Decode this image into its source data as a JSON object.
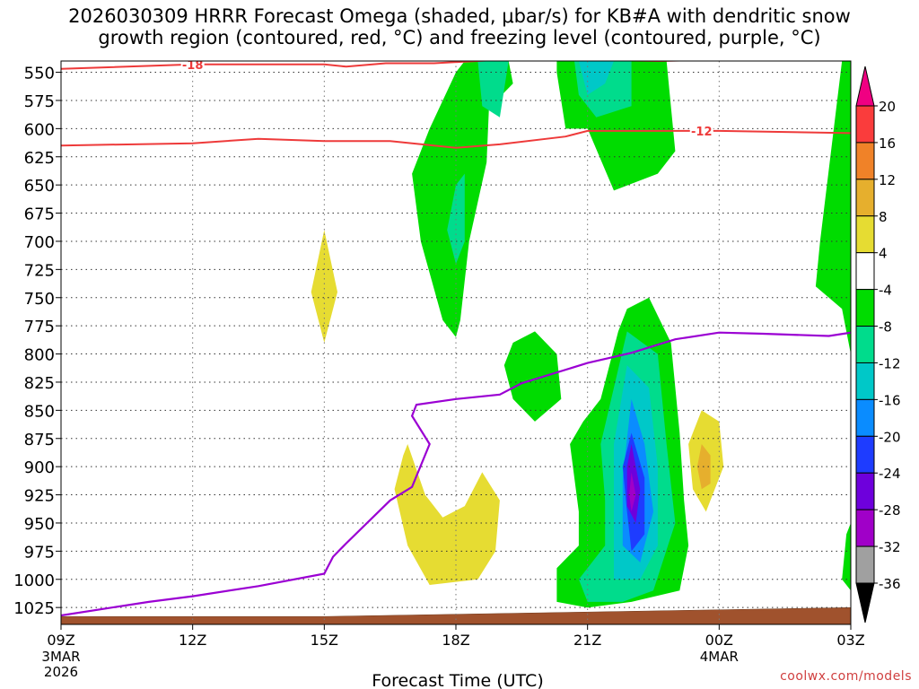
{
  "chart_data": {
    "type": "heatmap",
    "title_line1": "2026030309 HRRR Forecast Omega (shaded, μbar/s) for KB#A with dendritic snow",
    "title_line2": "growth region (contoured, red, °C) and freezing level (contoured, purple, °C)",
    "xlabel": "Forecast Time (UTC)",
    "x_ticks": [
      {
        "hour": 0,
        "label": "09Z",
        "sub1": "3MAR",
        "sub2": "2026"
      },
      {
        "hour": 3,
        "label": "12Z",
        "sub1": "",
        "sub2": ""
      },
      {
        "hour": 6,
        "label": "15Z",
        "sub1": "",
        "sub2": ""
      },
      {
        "hour": 9,
        "label": "18Z",
        "sub1": "",
        "sub2": ""
      },
      {
        "hour": 12,
        "label": "21Z",
        "sub1": "",
        "sub2": ""
      },
      {
        "hour": 15,
        "label": "00Z",
        "sub1": "4MAR",
        "sub2": ""
      },
      {
        "hour": 18,
        "label": "03Z",
        "sub1": "",
        "sub2": ""
      }
    ],
    "xlim_hours": [
      0,
      18
    ],
    "y_ticks": [
      550,
      575,
      600,
      625,
      650,
      675,
      700,
      725,
      750,
      775,
      800,
      825,
      850,
      875,
      900,
      925,
      950,
      975,
      1000,
      1025
    ],
    "ylim_hPa": [
      540,
      1040
    ],
    "colorbar": {
      "levels": [
        -36,
        -32,
        -28,
        -24,
        -20,
        -16,
        -12,
        -8,
        -4,
        4,
        8,
        12,
        16,
        20
      ],
      "labels": [
        "20",
        "16",
        "12",
        "8",
        "4",
        "-4",
        "-8",
        "-12",
        "-16",
        "-20",
        "-24",
        "-28",
        "-32",
        "-36"
      ],
      "colors": [
        "#000000",
        "#a0a0a0",
        "#a000c8",
        "#6e00dc",
        "#1e3cff",
        "#0a8cff",
        "#00c8c8",
        "#00dc8c",
        "#00dc00",
        "#ffffff",
        "#e6dc32",
        "#e6af2d",
        "#f08228",
        "#fa3c3c",
        "#f00082"
      ]
    },
    "shaded_regions": [
      {
        "name": "green",
        "color": "#00dc00",
        "points": [
          [
            9.2,
            540
          ],
          [
            9.8,
            540
          ],
          [
            9.7,
            630
          ],
          [
            9.3,
            700
          ],
          [
            9.1,
            770
          ],
          [
            9.0,
            785
          ],
          [
            8.7,
            770
          ],
          [
            8.2,
            700
          ],
          [
            8.0,
            640
          ],
          [
            8.4,
            600
          ],
          [
            9.0,
            550
          ]
        ]
      },
      {
        "name": "green",
        "color": "#00dc00",
        "points": [
          [
            9.9,
            540
          ],
          [
            10.2,
            540
          ],
          [
            10.3,
            560
          ],
          [
            9.8,
            580
          ]
        ]
      },
      {
        "name": "green",
        "color": "#00dc00",
        "points": [
          [
            11.3,
            540
          ],
          [
            13.8,
            540
          ],
          [
            14.0,
            620
          ],
          [
            13.6,
            640
          ],
          [
            12.6,
            655
          ],
          [
            12.0,
            600
          ],
          [
            11.5,
            600
          ],
          [
            11.3,
            550
          ]
        ]
      },
      {
        "name": "green",
        "color": "#00dc00",
        "points": [
          [
            10.3,
            790
          ],
          [
            10.8,
            780
          ],
          [
            11.3,
            800
          ],
          [
            11.4,
            840
          ],
          [
            10.8,
            860
          ],
          [
            10.3,
            840
          ],
          [
            10.1,
            810
          ]
        ]
      },
      {
        "name": "green",
        "color": "#00dc00",
        "points": [
          [
            12.9,
            760
          ],
          [
            13.4,
            750
          ],
          [
            13.9,
            790
          ],
          [
            14.1,
            870
          ],
          [
            14.2,
            930
          ],
          [
            14.3,
            970
          ],
          [
            14.1,
            1010
          ],
          [
            13.0,
            1020
          ],
          [
            12.0,
            1025
          ],
          [
            11.3,
            1020
          ],
          [
            11.3,
            990
          ],
          [
            11.8,
            970
          ],
          [
            11.8,
            940
          ],
          [
            11.6,
            880
          ],
          [
            11.9,
            860
          ],
          [
            12.3,
            840
          ],
          [
            12.5,
            810
          ],
          [
            12.7,
            780
          ]
        ]
      },
      {
        "name": "green",
        "color": "#00dc00",
        "points": [
          [
            17.8,
            540
          ],
          [
            18,
            540
          ],
          [
            18,
            800
          ],
          [
            17.8,
            760
          ],
          [
            17.2,
            740
          ],
          [
            17.3,
            700
          ]
        ]
      },
      {
        "name": "green",
        "color": "#00dc00",
        "points": [
          [
            17.9,
            960
          ],
          [
            18,
            950
          ],
          [
            18,
            1010
          ],
          [
            17.8,
            1000
          ]
        ]
      },
      {
        "name": "mint",
        "color": "#00dc8c",
        "points": [
          [
            9.0,
            650
          ],
          [
            9.2,
            640
          ],
          [
            9.2,
            700
          ],
          [
            9.0,
            720
          ],
          [
            8.8,
            690
          ]
        ]
      },
      {
        "name": "mint",
        "color": "#00dc8c",
        "points": [
          [
            9.5,
            540
          ],
          [
            10.2,
            540
          ],
          [
            10.0,
            590
          ],
          [
            9.6,
            580
          ]
        ]
      },
      {
        "name": "mint",
        "color": "#00dc8c",
        "points": [
          [
            11.7,
            540
          ],
          [
            13.0,
            540
          ],
          [
            13.0,
            580
          ],
          [
            12.2,
            590
          ],
          [
            11.8,
            570
          ]
        ]
      },
      {
        "name": "mint",
        "color": "#00dc8c",
        "points": [
          [
            12.9,
            780
          ],
          [
            13.6,
            800
          ],
          [
            13.8,
            880
          ],
          [
            14.0,
            950
          ],
          [
            13.5,
            1010
          ],
          [
            12.8,
            1020
          ],
          [
            12.0,
            1020
          ],
          [
            11.8,
            1000
          ],
          [
            12.4,
            970
          ],
          [
            12.4,
            930
          ],
          [
            12.3,
            880
          ],
          [
            12.6,
            830
          ]
        ]
      },
      {
        "name": "cyan",
        "color": "#00c8c8",
        "points": [
          [
            11.8,
            540
          ],
          [
            12.6,
            540
          ],
          [
            12.4,
            560
          ],
          [
            12.0,
            570
          ]
        ]
      },
      {
        "name": "cyan",
        "color": "#00c8c8",
        "points": [
          [
            12.9,
            810
          ],
          [
            13.4,
            830
          ],
          [
            13.6,
            900
          ],
          [
            13.6,
            970
          ],
          [
            13.2,
            1000
          ],
          [
            12.6,
            1000
          ],
          [
            12.6,
            950
          ],
          [
            12.6,
            880
          ]
        ]
      },
      {
        "name": "skyblue",
        "color": "#0a8cff",
        "points": [
          [
            13.0,
            840
          ],
          [
            13.3,
            880
          ],
          [
            13.5,
            940
          ],
          [
            13.2,
            985
          ],
          [
            12.8,
            970
          ],
          [
            12.8,
            910
          ]
        ]
      },
      {
        "name": "blue",
        "color": "#1e3cff",
        "points": [
          [
            13.0,
            870
          ],
          [
            13.3,
            910
          ],
          [
            13.3,
            960
          ],
          [
            13.0,
            975
          ],
          [
            12.9,
            940
          ],
          [
            12.8,
            900
          ]
        ]
      },
      {
        "name": "indigo",
        "color": "#6e00dc",
        "points": [
          [
            13.0,
            880
          ],
          [
            13.2,
            920
          ],
          [
            13.1,
            950
          ],
          [
            12.9,
            935
          ],
          [
            12.9,
            900
          ]
        ]
      },
      {
        "name": "purple",
        "color": "#a000c8",
        "points": [
          [
            13.0,
            905
          ],
          [
            13.1,
            925
          ],
          [
            13.0,
            940
          ],
          [
            12.95,
            925
          ]
        ]
      },
      {
        "name": "yellow",
        "color": "#e6dc32",
        "points": [
          [
            6.0,
            690
          ],
          [
            6.3,
            745
          ],
          [
            6.0,
            790
          ],
          [
            5.7,
            745
          ]
        ]
      },
      {
        "name": "yellow",
        "color": "#e6dc32",
        "points": [
          [
            7.9,
            880
          ],
          [
            8.3,
            925
          ],
          [
            8.7,
            945
          ],
          [
            9.2,
            935
          ],
          [
            9.6,
            905
          ],
          [
            10.0,
            930
          ],
          [
            9.9,
            975
          ],
          [
            9.5,
            1000
          ],
          [
            8.4,
            1005
          ],
          [
            7.9,
            970
          ],
          [
            7.6,
            920
          ],
          [
            7.8,
            890
          ]
        ]
      },
      {
        "name": "yellow",
        "color": "#e6dc32",
        "points": [
          [
            14.6,
            850
          ],
          [
            15.0,
            860
          ],
          [
            15.1,
            900
          ],
          [
            14.7,
            940
          ],
          [
            14.4,
            920
          ],
          [
            14.3,
            880
          ]
        ]
      },
      {
        "name": "orange",
        "color": "#e6af2d",
        "points": [
          [
            14.6,
            880
          ],
          [
            14.8,
            890
          ],
          [
            14.8,
            915
          ],
          [
            14.6,
            920
          ],
          [
            14.5,
            900
          ]
        ]
      }
    ],
    "red_contours": [
      {
        "label": "-18",
        "label_hour": 3.0,
        "points": [
          [
            0,
            547
          ],
          [
            3,
            543
          ],
          [
            6,
            543
          ],
          [
            6.5,
            545
          ],
          [
            7.4,
            542
          ],
          [
            8.5,
            542
          ],
          [
            10,
            539
          ],
          [
            12,
            539
          ],
          [
            13.6,
            540
          ],
          [
            15,
            539
          ],
          [
            18,
            539
          ]
        ]
      },
      {
        "label": "-12",
        "label_hour": 14.6,
        "points": [
          [
            0,
            615
          ],
          [
            3,
            613
          ],
          [
            4.5,
            609
          ],
          [
            6,
            611
          ],
          [
            7.5,
            611
          ],
          [
            9,
            617
          ],
          [
            10,
            614
          ],
          [
            11.5,
            607
          ],
          [
            12,
            602
          ],
          [
            13.5,
            602
          ],
          [
            15,
            602
          ],
          [
            16.5,
            603
          ],
          [
            18,
            604
          ]
        ]
      }
    ],
    "freezing_level": [
      [
        0,
        1032
      ],
      [
        1.0,
        1026
      ],
      [
        2.0,
        1020
      ],
      [
        3.0,
        1015
      ],
      [
        4.5,
        1006
      ],
      [
        6.0,
        995
      ],
      [
        6.2,
        980
      ],
      [
        6.5,
        968
      ],
      [
        7.5,
        930
      ],
      [
        8.0,
        918
      ],
      [
        8.4,
        880
      ],
      [
        8.0,
        855
      ],
      [
        8.1,
        845
      ],
      [
        9.0,
        840
      ],
      [
        10.0,
        836
      ],
      [
        10.5,
        826
      ],
      [
        12.0,
        808
      ],
      [
        13.0,
        799
      ],
      [
        14.0,
        787
      ],
      [
        15.0,
        781
      ],
      [
        16.0,
        782
      ],
      [
        17.5,
        784
      ],
      [
        18.0,
        781
      ]
    ],
    "terrain_hPa": [
      [
        0,
        1033
      ],
      [
        6,
        1033
      ],
      [
        9,
        1031
      ],
      [
        12,
        1029
      ],
      [
        15,
        1027
      ],
      [
        18,
        1025
      ]
    ],
    "watermark": "coolwx.com/models"
  }
}
